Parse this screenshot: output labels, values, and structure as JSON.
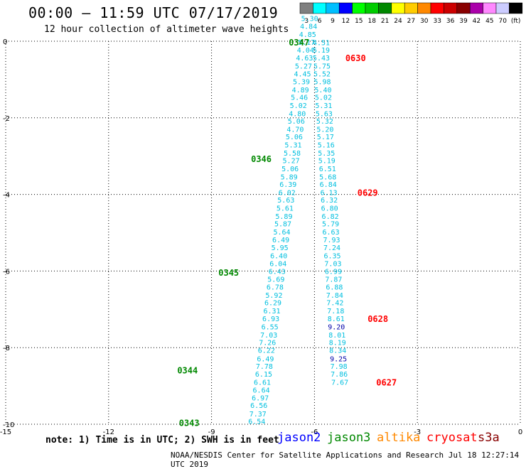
{
  "header": {
    "title": "00:00 – 11:59 UTC 07/17/2019",
    "subtitle": "12 hour collection of altimeter wave heights"
  },
  "color_scale": {
    "labels": [
      "3",
      "6",
      "9",
      "12",
      "15",
      "18",
      "21",
      "24",
      "27",
      "30",
      "33",
      "36",
      "39",
      "42",
      "45",
      "70",
      "(ft)"
    ],
    "colors": [
      "#7f7f7f",
      "#00ffff",
      "#00bfff",
      "#0000ff",
      "#00ff00",
      "#00cc00",
      "#008800",
      "#ffff00",
      "#ffcc00",
      "#ff8800",
      "#ff0000",
      "#cc0000",
      "#880000",
      "#aa00aa",
      "#ff88ff",
      "#ccccff",
      "#000000"
    ]
  },
  "footer": {
    "note": "note:  1) Time is in UTC; 2) SWH is in feet",
    "credit": "NOAA/NESDIS Center for Satellite Applications and Research   Jul 18 12:27:14 UTC 2019"
  },
  "satellites": [
    {
      "name": "jason2",
      "color": "#0000ff"
    },
    {
      "name": "jason3",
      "color": "#008800"
    },
    {
      "name": "altika",
      "color": "#ff8800"
    },
    {
      "name": "cryosat",
      "color": "#ff0000"
    },
    {
      "name": "s3a",
      "color": "#880000"
    }
  ],
  "chart_data": {
    "type": "scatter",
    "title": "00:00 – 11:59 UTC 07/17/2019",
    "subtitle": "12 hour collection of altimeter wave heights",
    "xlim": [
      -15,
      0
    ],
    "ylim": [
      -10,
      0
    ],
    "x_ticks": [
      -15,
      -12,
      -9,
      -6,
      -3,
      0
    ],
    "y_ticks": [
      0,
      -2,
      -4,
      -6,
      -8,
      -10
    ],
    "grid": true,
    "tracks": [
      {
        "satellite": "jason3",
        "points": [
          {
            "x": -7.68,
            "y": -9.92,
            "label": "6.54"
          },
          {
            "x": -7.65,
            "y": -9.72,
            "label": "7.37"
          },
          {
            "x": -7.62,
            "y": -9.5,
            "label": "6.56"
          },
          {
            "x": -7.58,
            "y": -9.3,
            "label": "6.97"
          },
          {
            "x": -7.55,
            "y": -9.1,
            "label": "6.64"
          },
          {
            "x": -7.52,
            "y": -8.9,
            "label": "6.61"
          },
          {
            "x": -7.48,
            "y": -8.68,
            "label": "6.15"
          },
          {
            "x": -7.46,
            "y": -8.48,
            "label": "7.78"
          },
          {
            "x": -7.43,
            "y": -8.28,
            "label": "6.49"
          },
          {
            "x": -7.4,
            "y": -8.06,
            "label": "6.22"
          },
          {
            "x": -7.37,
            "y": -7.86,
            "label": "7.26"
          },
          {
            "x": -7.33,
            "y": -7.66,
            "label": "7.03"
          },
          {
            "x": -7.3,
            "y": -7.45,
            "label": "6.55"
          },
          {
            "x": -7.27,
            "y": -7.24,
            "label": "6.93"
          },
          {
            "x": -7.24,
            "y": -7.03,
            "label": "6.31"
          },
          {
            "x": -7.21,
            "y": -6.82,
            "label": "6.29"
          },
          {
            "x": -7.18,
            "y": -6.62,
            "label": "5.92"
          },
          {
            "x": -7.15,
            "y": -6.41,
            "label": "6.78"
          },
          {
            "x": -7.12,
            "y": -6.21,
            "label": "5.69"
          },
          {
            "x": -7.09,
            "y": -6.0,
            "label": "6.43"
          },
          {
            "x": -7.06,
            "y": -5.8,
            "label": "6.04"
          },
          {
            "x": -7.04,
            "y": -5.59,
            "label": "6.40"
          },
          {
            "x": -7.01,
            "y": -5.38,
            "label": "5.95"
          },
          {
            "x": -6.98,
            "y": -5.18,
            "label": "6.49"
          },
          {
            "x": -6.95,
            "y": -4.97,
            "label": "5.64"
          },
          {
            "x": -6.92,
            "y": -4.76,
            "label": "5.87"
          },
          {
            "x": -6.89,
            "y": -4.56,
            "label": "5.89"
          },
          {
            "x": -6.86,
            "y": -4.35,
            "label": "5.61"
          },
          {
            "x": -6.83,
            "y": -4.14,
            "label": "5.63"
          },
          {
            "x": -6.8,
            "y": -3.94,
            "label": "6.02"
          },
          {
            "x": -6.77,
            "y": -3.73,
            "label": "6.39"
          },
          {
            "x": -6.74,
            "y": -3.53,
            "label": "5.89"
          },
          {
            "x": -6.71,
            "y": -3.32,
            "label": "5.06"
          },
          {
            "x": -6.68,
            "y": -3.11,
            "label": "5.27"
          },
          {
            "x": -6.65,
            "y": -2.91,
            "label": "5.58"
          },
          {
            "x": -6.62,
            "y": -2.7,
            "label": "5.31"
          },
          {
            "x": -6.59,
            "y": -2.49,
            "label": "5.06"
          },
          {
            "x": -6.56,
            "y": -2.29,
            "label": "4.70"
          },
          {
            "x": -6.53,
            "y": -2.08,
            "label": "5.06"
          },
          {
            "x": -6.5,
            "y": -1.88,
            "label": "4.80"
          },
          {
            "x": -6.47,
            "y": -1.67,
            "label": "5.02"
          },
          {
            "x": -6.44,
            "y": -1.46,
            "label": "5.46"
          },
          {
            "x": -6.41,
            "y": -1.26,
            "label": "4.89"
          },
          {
            "x": -6.38,
            "y": -1.05,
            "label": "5.39"
          },
          {
            "x": -6.35,
            "y": -0.84,
            "label": "4.45"
          },
          {
            "x": -6.32,
            "y": -0.64,
            "label": "5.27"
          },
          {
            "x": -6.29,
            "y": -0.43,
            "label": "4.63"
          },
          {
            "x": -6.26,
            "y": -0.22,
            "label": "4.04"
          },
          {
            "x": -6.23,
            "y": -0.02,
            "label": "5.17"
          },
          {
            "x": -6.2,
            "y": 0.19,
            "label": "4.85"
          },
          {
            "x": -6.17,
            "y": 0.4,
            "label": "4.84"
          },
          {
            "x": -6.14,
            "y": 0.6,
            "label": "5.30"
          }
        ],
        "time_labels": [
          {
            "x": -9.95,
            "y": -9.95,
            "text": "0343"
          },
          {
            "x": -10.0,
            "y": -8.58,
            "text": "0344"
          },
          {
            "x": -8.8,
            "y": -6.03,
            "text": "0345"
          },
          {
            "x": -7.85,
            "y": -3.06,
            "text": "0346"
          },
          {
            "x": -6.75,
            "y": -0.02,
            "text": "0347"
          }
        ]
      },
      {
        "satellite": "cryosat",
        "points": [
          {
            "x": -5.8,
            "y": -0.03,
            "label": "4.51"
          },
          {
            "x": -5.8,
            "y": -0.22,
            "label": "5.19"
          },
          {
            "x": -5.8,
            "y": -0.43,
            "label": "5.43"
          },
          {
            "x": -5.78,
            "y": -0.64,
            "label": "5.75"
          },
          {
            "x": -5.78,
            "y": -0.84,
            "label": "5.52"
          },
          {
            "x": -5.77,
            "y": -1.05,
            "label": "5.98"
          },
          {
            "x": -5.75,
            "y": -1.26,
            "label": "5.40"
          },
          {
            "x": -5.74,
            "y": -1.46,
            "label": "5.02"
          },
          {
            "x": -5.73,
            "y": -1.67,
            "label": "5.31"
          },
          {
            "x": -5.72,
            "y": -1.88,
            "label": "5.63"
          },
          {
            "x": -5.7,
            "y": -2.08,
            "label": "5.32"
          },
          {
            "x": -5.69,
            "y": -2.29,
            "label": "5.20"
          },
          {
            "x": -5.68,
            "y": -2.49,
            "label": "5.17"
          },
          {
            "x": -5.66,
            "y": -2.7,
            "label": "5.16"
          },
          {
            "x": -5.65,
            "y": -2.91,
            "label": "5.35"
          },
          {
            "x": -5.64,
            "y": -3.11,
            "label": "5.19"
          },
          {
            "x": -5.62,
            "y": -3.32,
            "label": "6.51"
          },
          {
            "x": -5.61,
            "y": -3.53,
            "label": "5.68"
          },
          {
            "x": -5.6,
            "y": -3.73,
            "label": "6.84"
          },
          {
            "x": -5.58,
            "y": -3.94,
            "label": "6.13"
          },
          {
            "x": -5.57,
            "y": -4.14,
            "label": "6.32"
          },
          {
            "x": -5.56,
            "y": -4.35,
            "label": "6.80"
          },
          {
            "x": -5.54,
            "y": -4.56,
            "label": "6.82"
          },
          {
            "x": -5.53,
            "y": -4.76,
            "label": "5.79"
          },
          {
            "x": -5.52,
            "y": -4.97,
            "label": "6.63"
          },
          {
            "x": -5.5,
            "y": -5.18,
            "label": "7.93"
          },
          {
            "x": -5.49,
            "y": -5.38,
            "label": "7.24"
          },
          {
            "x": -5.48,
            "y": -5.59,
            "label": "6.35"
          },
          {
            "x": -5.46,
            "y": -5.8,
            "label": "7.03"
          },
          {
            "x": -5.45,
            "y": -6.0,
            "label": "6.99"
          },
          {
            "x": -5.44,
            "y": -6.21,
            "label": "7.87"
          },
          {
            "x": -5.42,
            "y": -6.41,
            "label": "6.88"
          },
          {
            "x": -5.41,
            "y": -6.62,
            "label": "7.84"
          },
          {
            "x": -5.4,
            "y": -6.82,
            "label": "7.42"
          },
          {
            "x": -5.38,
            "y": -7.03,
            "label": "7.18"
          },
          {
            "x": -5.37,
            "y": -7.24,
            "label": "8.61"
          },
          {
            "x": -5.36,
            "y": -7.45,
            "label": "9.20"
          },
          {
            "x": -5.34,
            "y": -7.66,
            "label": "8.01"
          },
          {
            "x": -5.33,
            "y": -7.86,
            "label": "8.19"
          },
          {
            "x": -5.32,
            "y": -8.06,
            "label": "8.34"
          },
          {
            "x": -5.3,
            "y": -8.28,
            "label": "9.25"
          },
          {
            "x": -5.29,
            "y": -8.48,
            "label": "7.98"
          },
          {
            "x": -5.28,
            "y": -8.68,
            "label": "7.86"
          },
          {
            "x": -5.26,
            "y": -8.9,
            "label": "7.67"
          }
        ],
        "time_labels": [
          {
            "x": -5.1,
            "y": -0.43,
            "text": "0630"
          },
          {
            "x": -4.75,
            "y": -3.94,
            "text": "0629"
          },
          {
            "x": -4.45,
            "y": -7.24,
            "text": "0628"
          },
          {
            "x": -4.2,
            "y": -8.9,
            "text": "0627"
          }
        ]
      }
    ]
  }
}
